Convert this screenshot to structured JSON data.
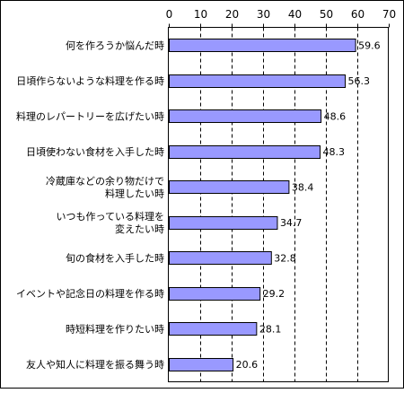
{
  "chart_data": {
    "type": "bar",
    "orientation": "horizontal",
    "title": "",
    "xlabel": "",
    "ylabel": "",
    "xlim": [
      0,
      70
    ],
    "ticks": [
      0,
      10,
      20,
      30,
      40,
      50,
      60,
      70
    ],
    "tick_labels": [
      "0",
      "10",
      "20",
      "30",
      "40",
      "50",
      "60",
      "70"
    ],
    "axis_position": "top",
    "grid": "dashed vertical",
    "categories": [
      [
        "何を作ろうか悩んだ時"
      ],
      [
        "日頃作らないような料理を作る時"
      ],
      [
        "料理のレパートリーを広げたい時"
      ],
      [
        "日頃使わない食材を入手した時"
      ],
      [
        "冷蔵庫などの余り物だけで",
        "料理したい時"
      ],
      [
        "いつも作っている料理を",
        "変えたい時"
      ],
      [
        "旬の食材を入手した時"
      ],
      [
        "イベントや記念日の料理を作る時"
      ],
      [
        "時短料理を作りたい時"
      ],
      [
        "友人や知人に料理を振る舞う時"
      ]
    ],
    "values": [
      59.6,
      56.3,
      48.6,
      48.3,
      38.4,
      34.7,
      32.8,
      29.2,
      28.1,
      20.6
    ],
    "value_labels": [
      "59.6",
      "56.3",
      "48.6",
      "48.3",
      "38.4",
      "34.7",
      "32.8",
      "29.2",
      "28.1",
      "20.6"
    ],
    "colors": {
      "bar_fill": "#9999ff",
      "bar_stroke": "#000000",
      "grid": "#000000",
      "background": "#ffffff"
    }
  }
}
